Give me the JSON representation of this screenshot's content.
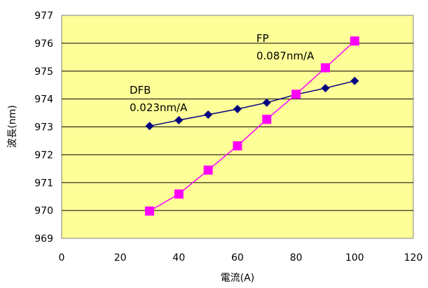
{
  "chart_data": {
    "type": "line",
    "xlabel": "電流(A)",
    "ylabel": "波長(nm)",
    "xlim": [
      0,
      120
    ],
    "ylim": [
      969,
      977
    ],
    "x_ticks": [
      "0",
      "20",
      "40",
      "60",
      "80",
      "100",
      "120"
    ],
    "y_ticks": [
      "969",
      "970",
      "971",
      "972",
      "973",
      "974",
      "975",
      "976",
      "977"
    ],
    "grid": "horizontal",
    "plot_background": "#ffff99",
    "series": [
      {
        "name": "DFB",
        "color": "#000080",
        "marker": "diamond",
        "x": [
          30,
          40,
          50,
          60,
          70,
          80,
          90,
          100
        ],
        "y": [
          973.03,
          973.24,
          973.44,
          973.64,
          973.87,
          974.16,
          974.39,
          974.65
        ]
      },
      {
        "name": "FP",
        "color": "#ff00ff",
        "marker": "square",
        "x": [
          30,
          40,
          50,
          60,
          70,
          80,
          90,
          100
        ],
        "y": [
          969.98,
          970.59,
          971.45,
          972.32,
          973.27,
          974.17,
          975.12,
          976.08
        ]
      }
    ],
    "annotations": [
      {
        "series": "DFB",
        "name_label": "DFB",
        "slope_label": "0.023nm/A"
      },
      {
        "series": "FP",
        "name_label": "FP",
        "slope_label": "0.087nm/A"
      }
    ]
  }
}
